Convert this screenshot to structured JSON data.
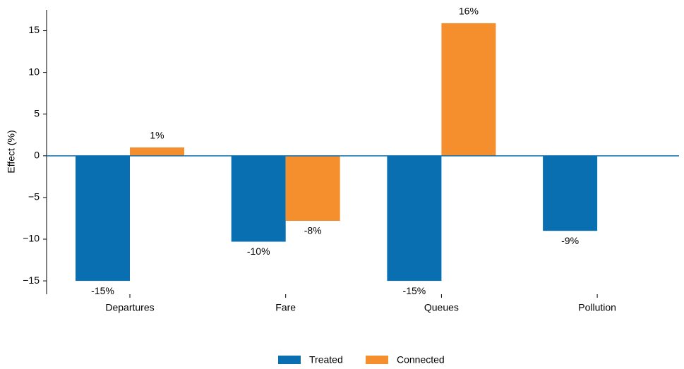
{
  "chart_data": {
    "type": "bar",
    "y_label": "Effect (%)",
    "categories": [
      "Departures",
      "Fare",
      "Queues",
      "Pollution"
    ],
    "series": [
      {
        "name": "Treated",
        "color": "#0a6fb0",
        "values": [
          -15,
          -10.3,
          -15,
          -9
        ],
        "value_labels": [
          "-15%",
          "-10%",
          "-15%",
          "-9%"
        ]
      },
      {
        "name": "Connected",
        "color": "#f58f2e",
        "values": [
          1,
          -7.8,
          15.9,
          null
        ],
        "value_labels": [
          "1%",
          "-8%",
          "16%",
          null
        ]
      }
    ],
    "ylim": [
      -16.6,
      17.5
    ],
    "yticks": [
      {
        "value": -15,
        "label": "−15"
      },
      {
        "value": -10,
        "label": "−10"
      },
      {
        "value": -5,
        "label": "−5"
      },
      0,
      5,
      10,
      15
    ],
    "legend": "bottom"
  }
}
